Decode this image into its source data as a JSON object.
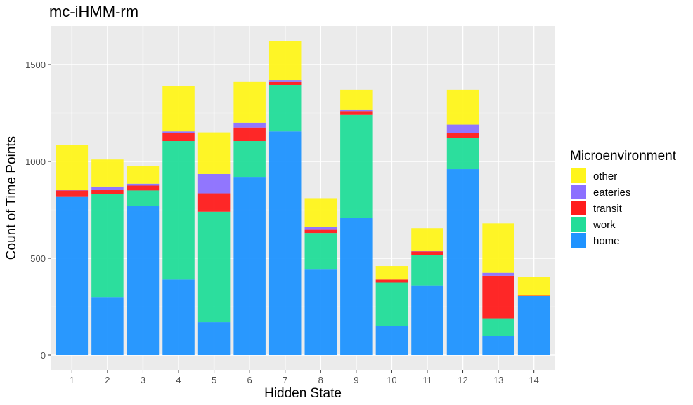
{
  "chart_data": {
    "type": "bar",
    "stacked": true,
    "title": "mc-iHMM-rm",
    "xlabel": "Hidden State",
    "ylabel": "Count of Time Points",
    "categories": [
      "1",
      "2",
      "3",
      "4",
      "5",
      "6",
      "7",
      "8",
      "9",
      "10",
      "11",
      "12",
      "13",
      "14"
    ],
    "ylim": [
      0,
      1700
    ],
    "yticks": [
      0,
      500,
      1000,
      1500
    ],
    "grid": true,
    "legend": {
      "title": "Microenvironment",
      "position": "right"
    },
    "series": [
      {
        "name": "home",
        "color": "#1f93ff",
        "values": [
          820,
          300,
          770,
          390,
          170,
          920,
          1155,
          445,
          710,
          150,
          360,
          960,
          100,
          305
        ]
      },
      {
        "name": "work",
        "color": "#22dd99",
        "values": [
          0,
          530,
          80,
          715,
          570,
          185,
          240,
          185,
          530,
          225,
          155,
          160,
          90,
          0
        ]
      },
      {
        "name": "transit",
        "color": "#ff1c1c",
        "values": [
          30,
          25,
          25,
          40,
          95,
          70,
          15,
          20,
          20,
          15,
          20,
          25,
          220,
          5
        ]
      },
      {
        "name": "eateries",
        "color": "#8c70ff",
        "values": [
          5,
          15,
          10,
          10,
          100,
          25,
          10,
          10,
          5,
          0,
          5,
          45,
          15,
          0
        ]
      },
      {
        "name": "other",
        "color": "#fff51b",
        "values": [
          230,
          140,
          90,
          235,
          215,
          210,
          200,
          150,
          105,
          70,
          115,
          180,
          255,
          95
        ]
      }
    ],
    "legend_order": [
      "other",
      "eateries",
      "transit",
      "work",
      "home"
    ]
  }
}
